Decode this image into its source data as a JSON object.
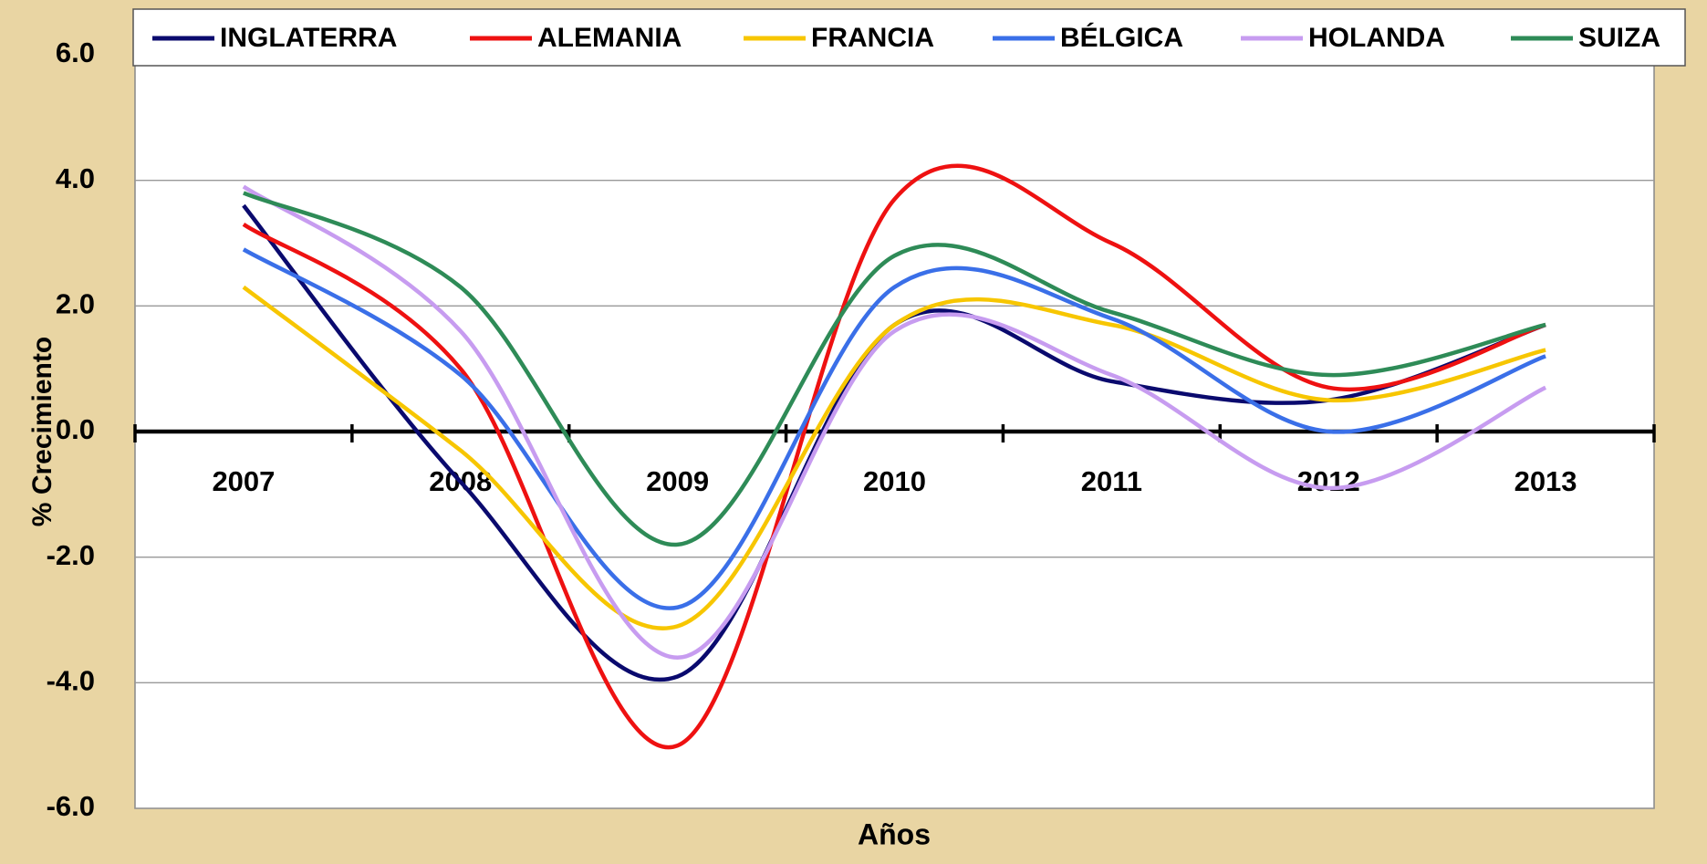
{
  "chart_data": {
    "type": "line",
    "x_label": "Años",
    "y_label": "% Crecimiento",
    "categories": [
      "2007",
      "2008",
      "2009",
      "2010",
      "2011",
      "2012",
      "2013"
    ],
    "series": [
      {
        "name": "INGLATERRA",
        "color": "#0a0a6e",
        "values": [
          3.6,
          -0.8,
          -3.9,
          1.7,
          0.8,
          0.5,
          1.7
        ]
      },
      {
        "name": "ALEMANIA",
        "color": "#ee1111",
        "values": [
          3.3,
          1.0,
          -5.0,
          3.7,
          3.0,
          0.7,
          1.7
        ]
      },
      {
        "name": "FRANCIA",
        "color": "#f7c600",
        "values": [
          2.3,
          -0.3,
          -3.1,
          1.7,
          1.7,
          0.5,
          1.3
        ]
      },
      {
        "name": "BÉLGICA",
        "color": "#3a6fe8",
        "values": [
          2.9,
          0.9,
          -2.8,
          2.3,
          1.8,
          0.0,
          1.2
        ]
      },
      {
        "name": "HOLANDA",
        "color": "#c79cf0",
        "values": [
          3.9,
          1.6,
          -3.6,
          1.6,
          0.9,
          -0.9,
          0.7
        ]
      },
      {
        "name": "SUIZA",
        "color": "#2e8b57",
        "values": [
          3.8,
          2.3,
          -1.8,
          2.8,
          1.9,
          0.9,
          1.7
        ]
      }
    ],
    "ylim": [
      -6,
      6
    ],
    "yticks": [
      {
        "value": 6,
        "label": "6.0"
      },
      {
        "value": 4,
        "label": "4.0"
      },
      {
        "value": 2,
        "label": "2.0"
      },
      {
        "value": 0,
        "label": "0.0"
      },
      {
        "value": -2,
        "label": "-2.0"
      },
      {
        "value": -4,
        "label": "-4.0"
      },
      {
        "value": -6,
        "label": "-6.0"
      }
    ],
    "negative_tick_color": "#ee0000",
    "grid": true,
    "legend": "top",
    "smooth": true
  }
}
